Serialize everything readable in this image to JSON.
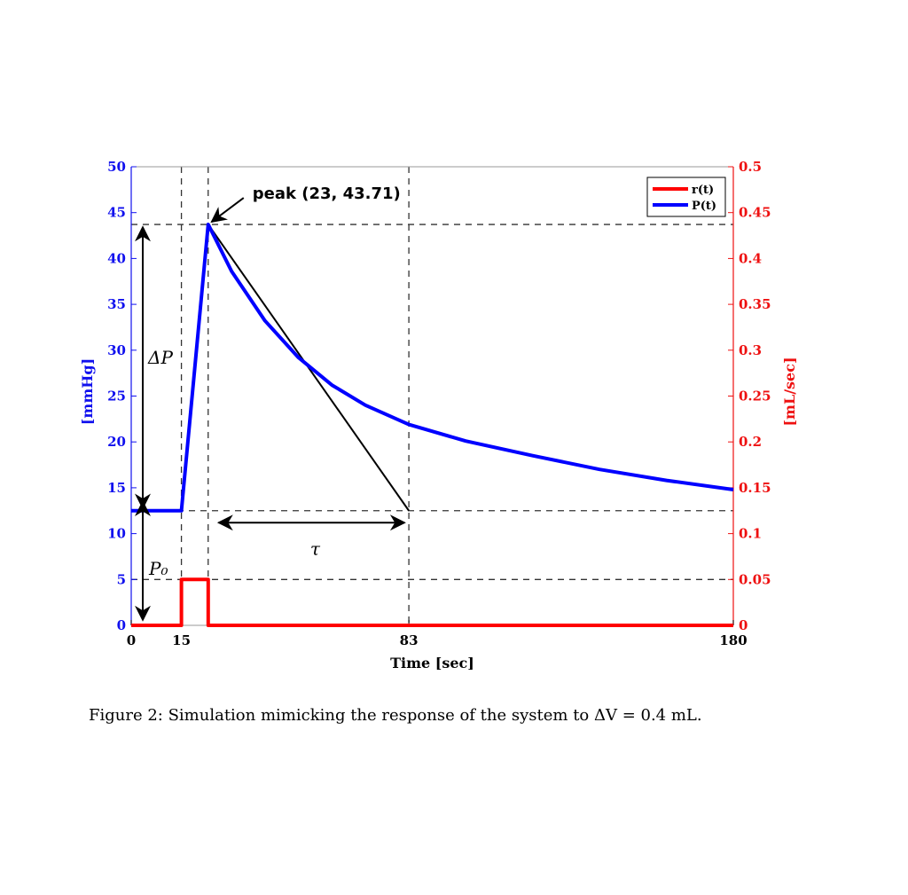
{
  "caption": "Figure 2: Simulation mimicking the response of the system to ΔV = 0.4 mL.",
  "chart_data": {
    "type": "line",
    "xlabel": "Time [sec]",
    "ylabel_left": "[mmHg]",
    "ylabel_right": "[mL/sec]",
    "xlim": [
      0,
      180
    ],
    "ylim_left": [
      0,
      50
    ],
    "ylim_right": [
      0,
      0.5
    ],
    "x_ticks": [
      "0",
      "15",
      "83",
      "180"
    ],
    "x_tick_values": [
      0,
      15,
      83,
      180
    ],
    "y_left_ticks": [
      0,
      5,
      10,
      15,
      20,
      25,
      30,
      35,
      40,
      45,
      50
    ],
    "y_right_ticks": [
      "0",
      "0.05",
      "0.1",
      "0.15",
      "0.2",
      "0.25",
      "0.3",
      "0.35",
      "0.4",
      "0.45",
      "0.5"
    ],
    "legend": {
      "position": "top-right",
      "entries": [
        "r(t)",
        "P(t)"
      ]
    },
    "colors": {
      "r": "#ff0000",
      "P": "#0000ff",
      "left_axis": "#1010ee",
      "right_axis": "#ee1010"
    },
    "series": [
      {
        "name": "r(t)",
        "axis": "right",
        "x": [
          0,
          15,
          15,
          23,
          23,
          180
        ],
        "values": [
          0,
          0,
          0.05,
          0.05,
          0,
          0
        ]
      },
      {
        "name": "P(t)",
        "axis": "left",
        "x": [
          0,
          15,
          23,
          30,
          40,
          50,
          60,
          70,
          83,
          100,
          120,
          140,
          160,
          180
        ],
        "values": [
          12.5,
          12.5,
          43.71,
          38.6,
          33.2,
          29.2,
          26.2,
          24.0,
          21.9,
          20.1,
          18.5,
          17.0,
          15.8,
          14.8
        ]
      }
    ],
    "tangent_line": {
      "x": [
        23,
        83
      ],
      "values": [
        43.71,
        12.5
      ]
    },
    "reference_lines": {
      "vertical_x": [
        15,
        23,
        83
      ],
      "horizontal_left": [
        43.71,
        12.5,
        5
      ]
    },
    "annotations": {
      "peak": "peak (23, 43.71)",
      "peak_point": [
        23,
        43.71
      ],
      "delta_p": "ΔP",
      "p0": "P₀",
      "tau": "τ",
      "delta_p_range": [
        12.5,
        43.71
      ],
      "p0_range": [
        0,
        12.5
      ],
      "tau_range": [
        15,
        83
      ]
    }
  }
}
